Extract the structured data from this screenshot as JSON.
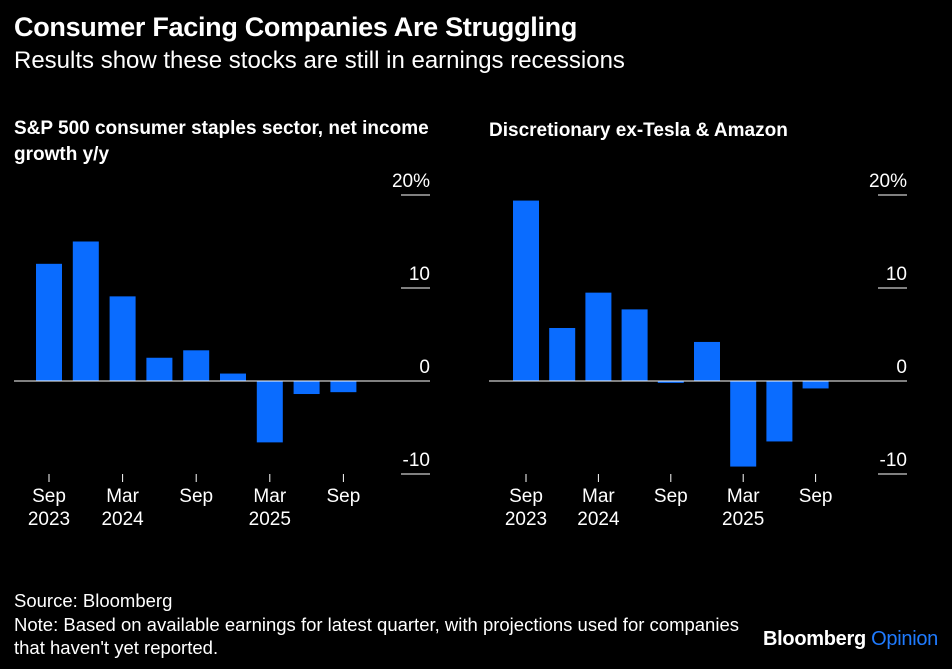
{
  "title": "Consumer Facing Companies Are Struggling",
  "subtitle": "Results show these stocks are still in earnings recessions",
  "colors": {
    "bar": "#0a6cff",
    "background": "#000000",
    "text": "#ffffff",
    "opinion": "#1f7bff"
  },
  "chart_data": [
    {
      "type": "bar",
      "title": "S&P 500 consumer staples sector, net income growth y/y",
      "ylim": [
        -10,
        20
      ],
      "yticks": [
        "20%",
        "10",
        "0",
        "-10"
      ],
      "ytick_values": [
        20,
        10,
        0,
        -10
      ],
      "x_labels": [
        {
          "line1": "Sep",
          "line2": "2023",
          "index": 0
        },
        {
          "line1": "Mar",
          "line2": "2024",
          "index": 2
        },
        {
          "line1": "Sep",
          "line2": "",
          "index": 4
        },
        {
          "line1": "Mar",
          "line2": "2025",
          "index": 6
        },
        {
          "line1": "Sep",
          "line2": "",
          "index": 8
        }
      ],
      "values": [
        12.6,
        15.0,
        9.1,
        2.5,
        3.3,
        0.8,
        -6.6,
        -1.4,
        -1.2
      ],
      "grid": false
    },
    {
      "type": "bar",
      "title": "Discretionary ex-Tesla & Amazon",
      "ylim": [
        -10,
        20
      ],
      "yticks": [
        "20%",
        "10",
        "0",
        "-10"
      ],
      "ytick_values": [
        20,
        10,
        0,
        -10
      ],
      "x_labels": [
        {
          "line1": "Sep",
          "line2": "2023",
          "index": 0
        },
        {
          "line1": "Mar",
          "line2": "2024",
          "index": 2
        },
        {
          "line1": "Sep",
          "line2": "",
          "index": 4
        },
        {
          "line1": "Mar",
          "line2": "2025",
          "index": 6
        },
        {
          "line1": "Sep",
          "line2": "",
          "index": 8
        }
      ],
      "values": [
        19.4,
        5.7,
        9.5,
        7.7,
        -0.2,
        4.2,
        -9.2,
        -6.5,
        -0.8
      ],
      "grid": false
    }
  ],
  "footer": {
    "source": "Source: Bloomberg",
    "note": "Note: Based on available earnings for latest quarter, with projections used for companies that haven't yet reported."
  },
  "brand": {
    "part1": "Bloomberg",
    "part2": "Opinion"
  }
}
